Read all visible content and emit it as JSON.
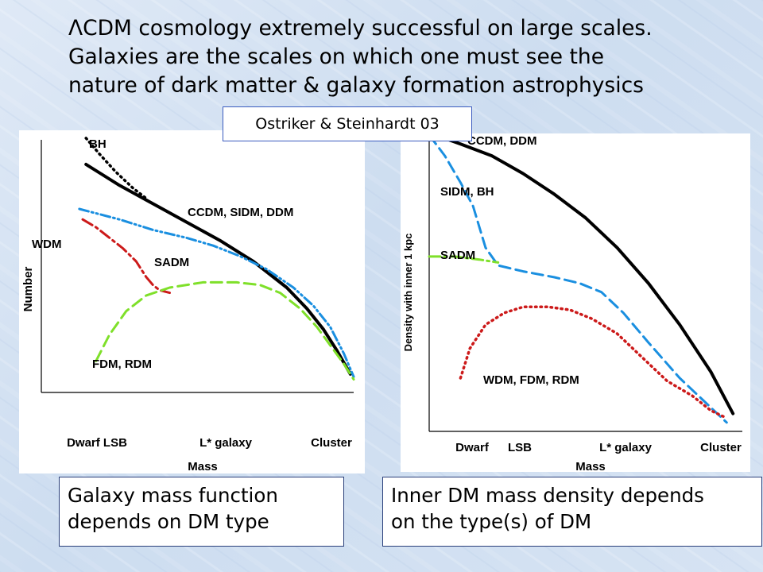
{
  "slide": {
    "title_lines": [
      "ΛCDM cosmology extremely successful on large scales.",
      "Galaxies are the scales on which one must see the",
      "nature of dark matter & galaxy formation astrophysics"
    ],
    "reference": "Ostriker & Steinhardt 03",
    "captions": {
      "left": [
        "Galaxy mass function",
        "depends on DM type"
      ],
      "right": [
        "Inner DM mass density depends",
        "on the type(s) of DM"
      ]
    }
  },
  "colors": {
    "background": "#d6e3f3",
    "black": "#000000",
    "blue": "#1a8fe0",
    "red": "#cc1a1a",
    "green": "#7fe02a",
    "caption_border": "#2a3f7a"
  },
  "chart_data": [
    {
      "type": "line",
      "title": "",
      "xlabel": "Mass",
      "ylabel": "Number",
      "x_tick_labels": [
        "Dwarf LSB",
        "L* galaxy",
        "Cluster"
      ],
      "grid": false,
      "series": [
        {
          "name": "BH",
          "style": "dotted",
          "color": "#000000",
          "x": [
            0.2,
            0.24,
            0.29,
            0.34,
            0.38
          ],
          "y": [
            0.97,
            0.91,
            0.84,
            0.78,
            0.74
          ]
        },
        {
          "name": "CCDM, SIDM, DDM",
          "style": "solid",
          "color": "#000000",
          "x": [
            0.2,
            0.3,
            0.4,
            0.5,
            0.6,
            0.7,
            0.8,
            0.86,
            0.91,
            0.95,
            0.99
          ],
          "y": [
            0.87,
            0.79,
            0.72,
            0.65,
            0.58,
            0.5,
            0.4,
            0.32,
            0.24,
            0.16,
            0.07
          ]
        },
        {
          "name": "SADM",
          "style": "dash-dot-dot",
          "color": "#1a8fe0",
          "x": [
            0.18,
            0.3,
            0.4,
            0.5,
            0.58,
            0.66,
            0.74,
            0.82,
            0.88,
            0.93,
            0.97,
            1.0
          ],
          "y": [
            0.7,
            0.66,
            0.62,
            0.59,
            0.56,
            0.52,
            0.47,
            0.4,
            0.33,
            0.25,
            0.15,
            0.06
          ]
        },
        {
          "name": "WDM",
          "style": "dash-dot",
          "color": "#cc1a1a",
          "x": [
            0.19,
            0.23,
            0.27,
            0.31,
            0.35,
            0.38,
            0.4,
            0.42,
            0.45
          ],
          "y": [
            0.66,
            0.63,
            0.59,
            0.55,
            0.5,
            0.44,
            0.41,
            0.39,
            0.38
          ]
        },
        {
          "name": "FDM, RDM",
          "style": "dashed",
          "color": "#7fe02a",
          "x": [
            0.23,
            0.27,
            0.32,
            0.38,
            0.45,
            0.55,
            0.65,
            0.72,
            0.78,
            0.84,
            0.89,
            0.93,
            0.97,
            1.0
          ],
          "y": [
            0.12,
            0.22,
            0.31,
            0.37,
            0.4,
            0.42,
            0.42,
            0.41,
            0.38,
            0.32,
            0.25,
            0.18,
            0.11,
            0.05
          ]
        }
      ]
    },
    {
      "type": "line",
      "title": "",
      "xlabel": "Mass",
      "ylabel": "Density with inner 1 kpc",
      "x_tick_labels": [
        "Dwarf",
        "LSB",
        "L* galaxy",
        "Cluster"
      ],
      "grid": false,
      "series": [
        {
          "name": "CCDM, DDM",
          "style": "solid",
          "color": "#000000",
          "x": [
            0.02,
            0.1,
            0.2,
            0.3,
            0.4,
            0.5,
            0.6,
            0.7,
            0.8,
            0.9,
            0.97
          ],
          "y": [
            1.0,
            0.97,
            0.93,
            0.87,
            0.8,
            0.72,
            0.62,
            0.5,
            0.36,
            0.2,
            0.06
          ]
        },
        {
          "name": "SIDM, BH",
          "style": "dashed",
          "color": "#1a8fe0",
          "x": [
            0.0,
            0.05,
            0.1,
            0.14,
            0.18,
            0.22,
            0.3,
            0.4,
            0.48,
            0.55,
            0.62,
            0.7,
            0.8,
            0.9,
            0.95
          ],
          "y": [
            1.0,
            0.93,
            0.84,
            0.76,
            0.62,
            0.56,
            0.54,
            0.52,
            0.5,
            0.47,
            0.4,
            0.3,
            0.18,
            0.08,
            0.03
          ]
        },
        {
          "name": "SADM",
          "style": "dash-dot",
          "color": "#7fe02a",
          "x": [
            0.0,
            0.08,
            0.16,
            0.22
          ],
          "y": [
            0.59,
            0.59,
            0.58,
            0.57
          ]
        },
        {
          "name": "WDM, FDM, RDM",
          "style": "dotted",
          "color": "#cc1a1a",
          "x": [
            0.1,
            0.13,
            0.18,
            0.24,
            0.3,
            0.38,
            0.45,
            0.52,
            0.6,
            0.68,
            0.76,
            0.84,
            0.9,
            0.94
          ],
          "y": [
            0.18,
            0.28,
            0.36,
            0.4,
            0.42,
            0.42,
            0.41,
            0.38,
            0.33,
            0.25,
            0.17,
            0.12,
            0.07,
            0.05
          ]
        }
      ]
    }
  ]
}
